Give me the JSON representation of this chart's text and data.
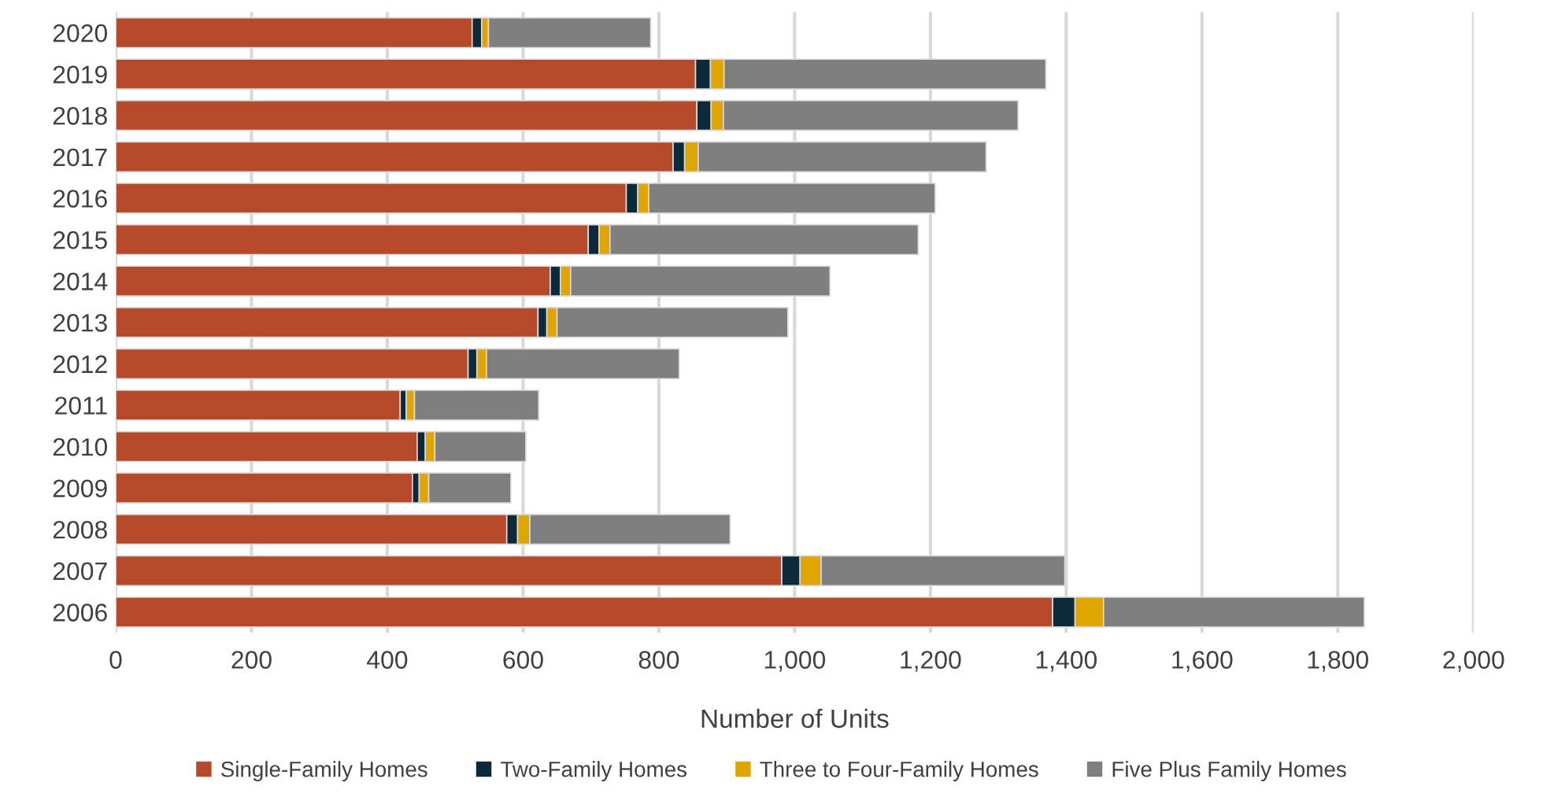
{
  "chart_data": {
    "type": "bar",
    "orientation": "horizontal",
    "stacked": true,
    "xlabel": "Number of Units",
    "categories": [
      "2020",
      "2019",
      "2018",
      "2017",
      "2016",
      "2015",
      "2014",
      "2013",
      "2012",
      "2011",
      "2010",
      "2009",
      "2008",
      "2007",
      "2006"
    ],
    "series": [
      {
        "name": "Single-Family Homes",
        "color": "#b5492a",
        "values": [
          525,
          854,
          856,
          821,
          752,
          696,
          640,
          622,
          519,
          419,
          444,
          437,
          576,
          981,
          1380
        ]
      },
      {
        "name": "Two-Family Homes",
        "color": "#0c2a3a",
        "values": [
          14,
          22,
          21,
          17,
          17,
          16,
          15,
          13,
          13,
          9,
          12,
          10,
          16,
          27,
          33
        ]
      },
      {
        "name": "Three to Four-Family Homes",
        "color": "#e0a500",
        "values": [
          10,
          20,
          18,
          20,
          16,
          16,
          15,
          15,
          14,
          12,
          14,
          14,
          18,
          31,
          42
        ]
      },
      {
        "name": "Five Plus Family Homes",
        "color": "#7f7f7f",
        "values": [
          239,
          474,
          434,
          424,
          422,
          454,
          382,
          340,
          284,
          183,
          134,
          121,
          295,
          359,
          384
        ]
      }
    ],
    "xlim": [
      0,
      2000
    ],
    "xticks": [
      0,
      200,
      400,
      600,
      800,
      {
        "value": 1000,
        "label": "1,000"
      },
      {
        "value": 1200,
        "label": "1,200"
      },
      {
        "value": 1400,
        "label": "1,400"
      },
      {
        "value": 1600,
        "label": "1,600"
      },
      {
        "value": 1800,
        "label": "1,800"
      },
      {
        "value": 2000,
        "label": "2,000"
      }
    ],
    "grid": "x",
    "legend": "bottom"
  }
}
